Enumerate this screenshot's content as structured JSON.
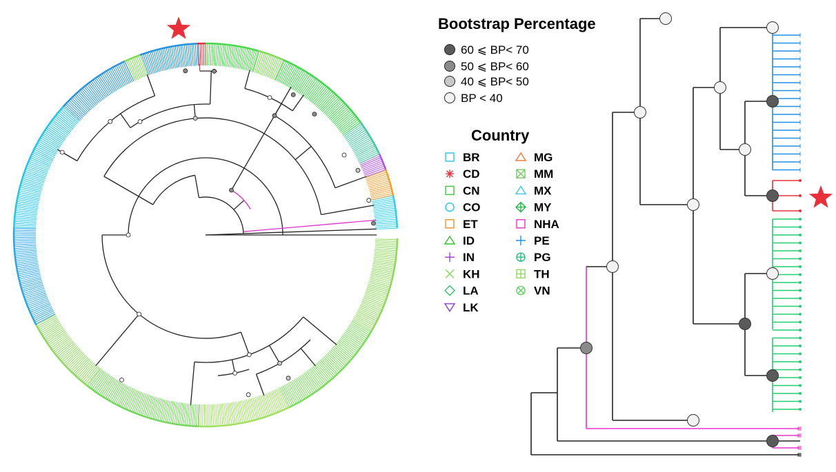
{
  "bootstrap_legend": {
    "title": "Bootstrap Percentage",
    "items": [
      {
        "label": "60 ⩽ BP< 70",
        "color": "#5a5a5a"
      },
      {
        "label": "50 ⩽ BP< 60",
        "color": "#8a8a8a"
      },
      {
        "label": "40 ⩽ BP< 50",
        "color": "#c8c8c8"
      },
      {
        "label": "BP < 40",
        "color": "#f2f2f2"
      }
    ]
  },
  "country_legend": {
    "title": "Country",
    "items": [
      {
        "code": "BR",
        "color": "#29c4e0",
        "shape": "square"
      },
      {
        "code": "CD",
        "color": "#e8303a",
        "shape": "asterisk"
      },
      {
        "code": "CN",
        "color": "#3cc83c",
        "shape": "square"
      },
      {
        "code": "CO",
        "color": "#22c6e8",
        "shape": "circle"
      },
      {
        "code": "ET",
        "color": "#f0922a",
        "shape": "square"
      },
      {
        "code": "ID",
        "color": "#28c828",
        "shape": "triangle-up"
      },
      {
        "code": "IN",
        "color": "#a23cd8",
        "shape": "plus"
      },
      {
        "code": "KH",
        "color": "#7ed956",
        "shape": "cross"
      },
      {
        "code": "LA",
        "color": "#2fc46a",
        "shape": "diamond"
      },
      {
        "code": "LK",
        "color": "#8a3fd8",
        "shape": "triangle-down"
      },
      {
        "code": "MG",
        "color": "#f07a3a",
        "shape": "triangle-up"
      },
      {
        "code": "MM",
        "color": "#72c860",
        "shape": "square-x"
      },
      {
        "code": "MX",
        "color": "#38c6e4",
        "shape": "triangle-up"
      },
      {
        "code": "MY",
        "color": "#1fbc44",
        "shape": "diamond-plus"
      },
      {
        "code": "NHA",
        "color": "#e432c8",
        "shape": "square"
      },
      {
        "code": "PE",
        "color": "#1f8fe8",
        "shape": "plus"
      },
      {
        "code": "PG",
        "color": "#22c07a",
        "shape": "circle-plus"
      },
      {
        "code": "TH",
        "color": "#8fd860",
        "shape": "square-plus"
      },
      {
        "code": "VN",
        "color": "#5fd060",
        "shape": "circle-x"
      }
    ]
  },
  "highlight_marker": {
    "icon": "star-icon",
    "color": "#e8303a"
  },
  "colors": {
    "branch": "#222222",
    "pe_clade": "#1e90e6",
    "cd_clade": "#e8303a",
    "green_clade": "#20d070",
    "nha_clade": "#e830d0"
  }
}
